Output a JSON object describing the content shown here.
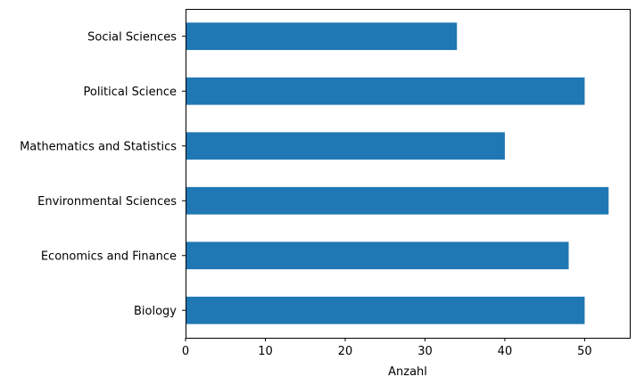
{
  "chart_data": {
    "type": "bar",
    "orientation": "horizontal",
    "categories": [
      "Biology",
      "Economics and Finance",
      "Environmental Sciences",
      "Mathematics and Statistics",
      "Political Science",
      "Social Sciences"
    ],
    "values": [
      50,
      48,
      53,
      40,
      50,
      34
    ],
    "title": "",
    "xlabel": "Anzahl",
    "ylabel": "",
    "xlim": [
      0,
      55.65
    ],
    "xticks": [
      0,
      10,
      20,
      30,
      40,
      50
    ],
    "grid": false,
    "bar_color": "#1f77b4"
  }
}
